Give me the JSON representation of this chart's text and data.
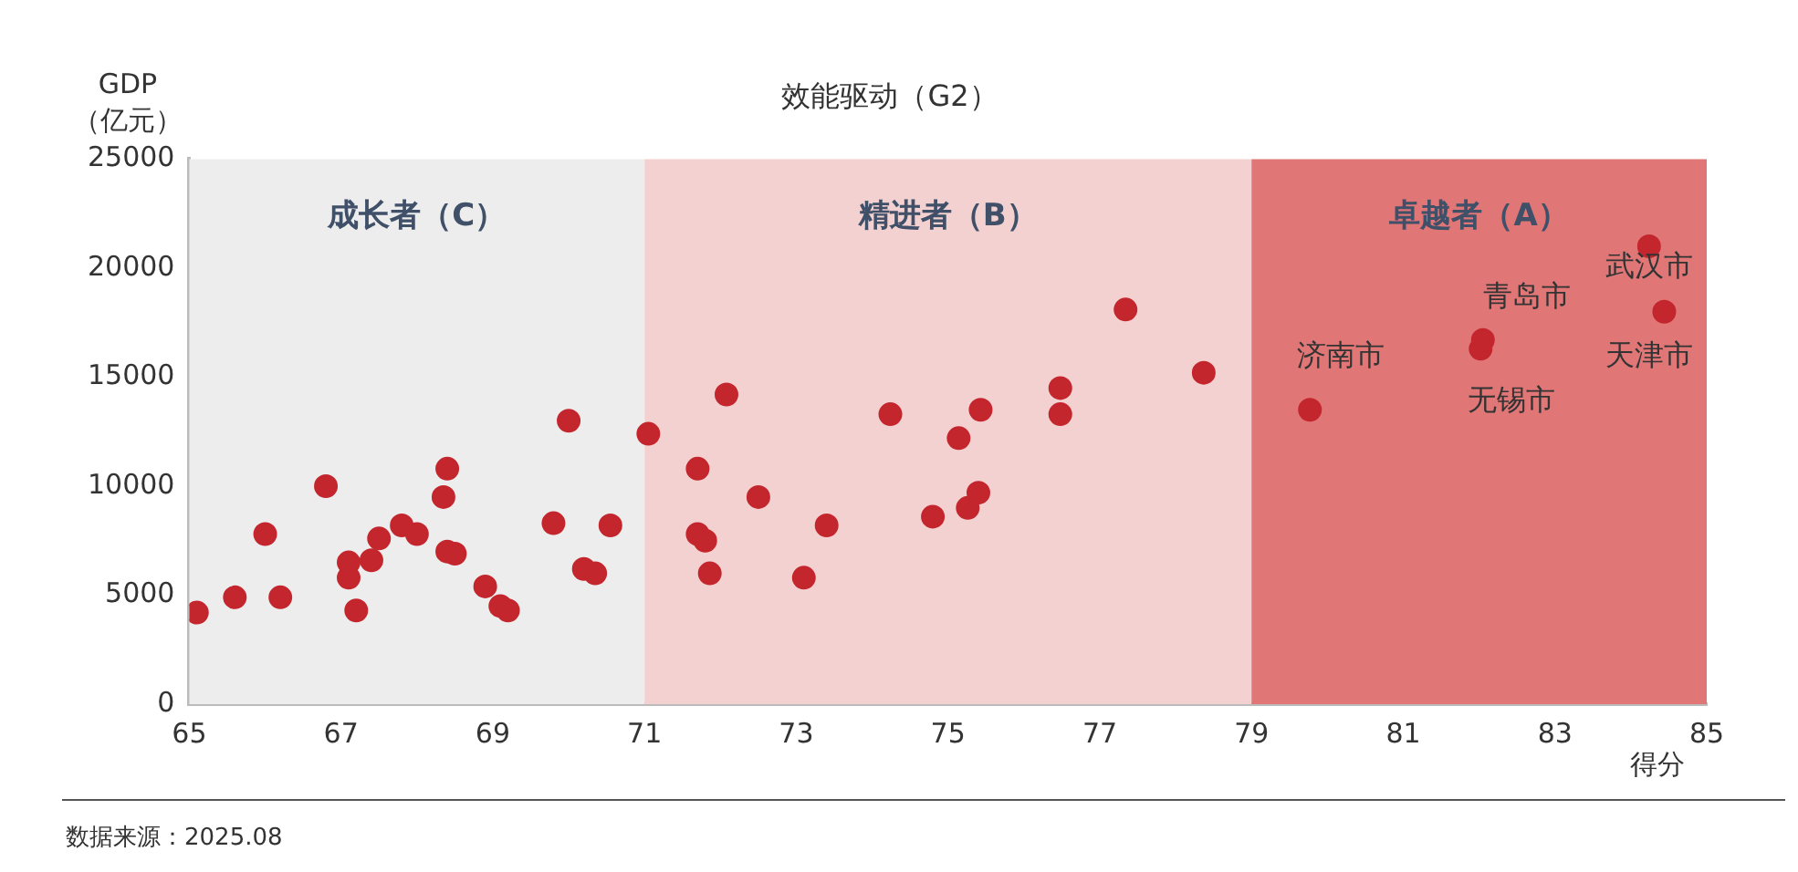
{
  "chart_data": {
    "type": "scatter",
    "title": "效能驱动（G2）",
    "ylabel": "GDP\n（亿元）",
    "xlabel": "得分",
    "xlim": [
      65,
      85
    ],
    "xticks": [
      65,
      67,
      69,
      71,
      73,
      75,
      77,
      79,
      81,
      83,
      85
    ],
    "ylim": [
      0,
      25000
    ],
    "yticks": [
      0,
      5000,
      10000,
      15000,
      20000,
      25000
    ],
    "grid": false,
    "legend": false,
    "marker": "circle",
    "series": [
      {
        "color": "#c4262e",
        "x": [
          65.1,
          65.6,
          66.0,
          66.2,
          66.8,
          67.1,
          67.1,
          67.2,
          67.4,
          67.5,
          67.8,
          68.0,
          68.35,
          68.4,
          68.4,
          68.5,
          68.9,
          69.1,
          69.2,
          69.8,
          70.0,
          70.2,
          70.35,
          70.55,
          71.05,
          72.08,
          71.7,
          72.5,
          71.7,
          71.8,
          71.86,
          73.1,
          73.4,
          74.24,
          74.8,
          75.14,
          75.43,
          75.4,
          75.26,
          76.48,
          76.48,
          77.34,
          78.37,
          79.77,
          82.02,
          82.05,
          84.24,
          84.44
        ],
        "values": [
          4200,
          4900,
          7800,
          4900,
          10000,
          5800,
          6500,
          4300,
          6600,
          7600,
          8200,
          7800,
          9500,
          7000,
          10800,
          6900,
          5400,
          4500,
          4300,
          8300,
          13000,
          6200,
          6000,
          8200,
          12400,
          14200,
          10800,
          9500,
          7800,
          7500,
          6000,
          5800,
          8200,
          13300,
          8600,
          12200,
          13500,
          9700,
          9000,
          14500,
          13300,
          18100,
          15200,
          13500,
          16300,
          16700,
          21000,
          18000
        ]
      }
    ],
    "bands": [
      {
        "axis": "x",
        "from": 65,
        "to": 71,
        "label": "成长者（C）",
        "color": "#ededed"
      },
      {
        "axis": "x",
        "from": 71,
        "to": 79,
        "label": "精进者（B）",
        "color": "#f4d1d1"
      },
      {
        "axis": "x",
        "from": 79,
        "to": 85,
        "label": "卓越者（A）",
        "color": "#e07676"
      }
    ],
    "annotations": [
      {
        "text": "济南市",
        "x": 79.77,
        "y": 13500
      },
      {
        "text": "青岛市",
        "x": 82.05,
        "y": 16700
      },
      {
        "text": "无锡市",
        "x": 82.02,
        "y": 16300
      },
      {
        "text": "武汉市",
        "x": 84.24,
        "y": 21000
      },
      {
        "text": "天津市",
        "x": 84.44,
        "y": 18000
      },
      "数据来源：2025.08"
    ]
  }
}
